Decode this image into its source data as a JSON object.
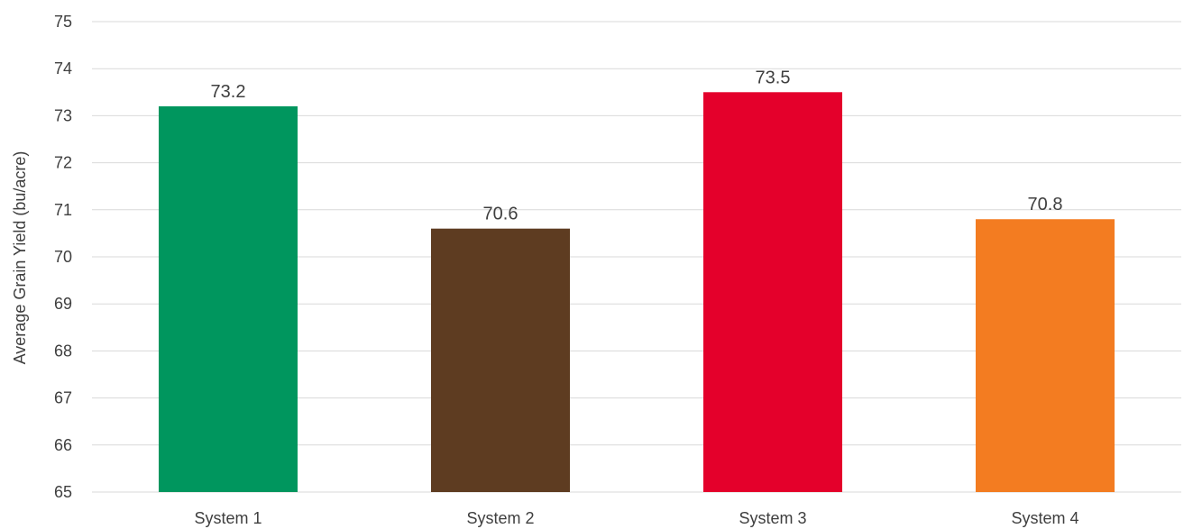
{
  "chart_data": {
    "type": "bar",
    "title": "",
    "xlabel": "",
    "ylabel": "Average Grain Yield (bu/acre)",
    "ylim": [
      65,
      75
    ],
    "yticks": [
      65,
      66,
      67,
      68,
      69,
      70,
      71,
      72,
      73,
      74,
      75
    ],
    "grid": true,
    "categories": [
      "System 1",
      "System 2",
      "System 3",
      "System 4"
    ],
    "values": [
      73.2,
      70.6,
      73.5,
      70.8
    ],
    "value_labels": [
      "73.2",
      "70.6",
      "73.5",
      "70.8"
    ],
    "colors": [
      "#00965e",
      "#5e3c21",
      "#e4002b",
      "#f37c21"
    ]
  }
}
